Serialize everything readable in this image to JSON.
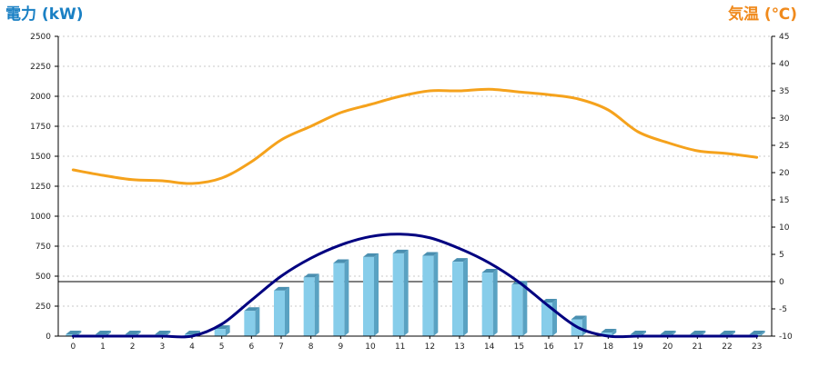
{
  "colors": {
    "bar_front": "#87cdea",
    "bar_side": "#5aa2c2",
    "bar_top": "#4a8fb0",
    "line_power": "#000080",
    "line_temp": "#f5a21c",
    "title_power": "#1a80c4",
    "title_temp": "#f08a1c",
    "grid": "#c8c8c8",
    "axis": "#000000"
  },
  "chart_data": {
    "type": "bar",
    "categories": [
      "0",
      "1",
      "2",
      "3",
      "4",
      "5",
      "6",
      "7",
      "8",
      "9",
      "10",
      "11",
      "12",
      "13",
      "14",
      "15",
      "16",
      "17",
      "18",
      "19",
      "20",
      "21",
      "22",
      "23"
    ],
    "y_left": {
      "label": "電力 (kW)",
      "range": [
        0,
        2500
      ],
      "ticks": [
        0,
        250,
        500,
        750,
        1000,
        1250,
        1500,
        1750,
        2000,
        2250,
        2500
      ]
    },
    "y_right": {
      "label": "気温 (℃)",
      "range": [
        -10,
        45
      ],
      "ticks": [
        -10,
        -5,
        0,
        5,
        10,
        15,
        20,
        25,
        30,
        35,
        40,
        45
      ]
    },
    "grid": true,
    "series": [
      {
        "kind": "bar",
        "axis": "left",
        "values": [
          0,
          0,
          0,
          0,
          0,
          60,
          210,
          380,
          490,
          610,
          660,
          690,
          670,
          620,
          530,
          430,
          280,
          140,
          30,
          0,
          0,
          0,
          0,
          0
        ]
      },
      {
        "kind": "line",
        "axis": "left",
        "values": [
          0,
          0,
          0,
          0,
          0,
          100,
          300,
          500,
          650,
          760,
          830,
          850,
          820,
          730,
          610,
          450,
          250,
          70,
          0,
          0,
          0,
          0,
          0,
          0
        ]
      },
      {
        "kind": "line",
        "axis": "right",
        "values": [
          20.5,
          19.5,
          18.7,
          18.5,
          18.0,
          19.0,
          22.0,
          26.0,
          28.5,
          31.0,
          32.5,
          34.0,
          35.0,
          35.0,
          35.3,
          34.8,
          34.3,
          33.5,
          31.5,
          27.5,
          25.5,
          24.0,
          23.5,
          22.8
        ]
      }
    ]
  }
}
